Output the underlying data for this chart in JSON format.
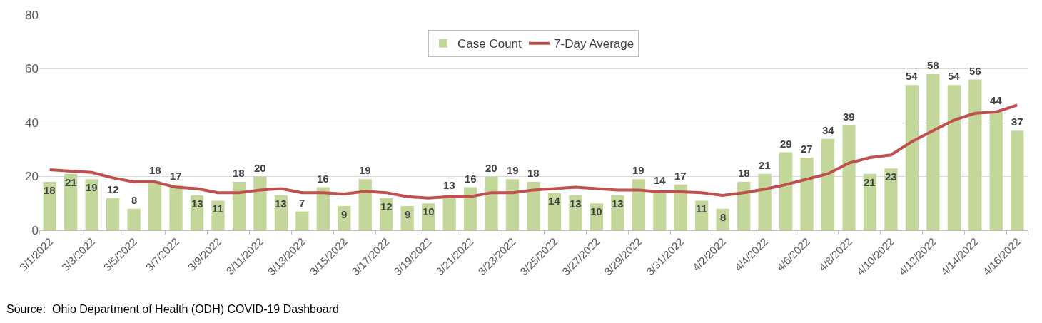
{
  "chart_data": {
    "type": "bar",
    "categories": [
      "3/1/2022",
      null,
      "3/3/2022",
      null,
      "3/5/2022",
      null,
      "3/7/2022",
      null,
      "3/9/2022",
      null,
      "3/11/2022",
      null,
      "3/13/2022",
      null,
      "3/15/2022",
      null,
      "3/17/2022",
      null,
      "3/19/2022",
      null,
      "3/21/2022",
      null,
      "3/23/2022",
      null,
      "3/25/2022",
      null,
      "3/27/2022",
      null,
      "3/29/2022",
      null,
      "3/31/2022",
      null,
      "4/2/2022",
      null,
      "4/4/2022",
      null,
      "4/6/2022",
      null,
      "4/8/2022",
      null,
      "4/10/2022",
      null,
      "4/12/2022",
      null,
      "4/14/2022",
      null,
      "4/16/2022"
    ],
    "series": [
      {
        "name": "Case Count",
        "color": "#c4d79b",
        "values": [
          18,
          21,
          19,
          12,
          8,
          18,
          17,
          13,
          11,
          18,
          20,
          13,
          7,
          16,
          9,
          19,
          12,
          9,
          10,
          13,
          16,
          20,
          19,
          18,
          14,
          13,
          10,
          13,
          19,
          14,
          17,
          11,
          8,
          18,
          21,
          29,
          27,
          34,
          39,
          21,
          23,
          54,
          58,
          54,
          56,
          44,
          37
        ],
        "value_labels": [
          "18",
          "21",
          "19",
          "12",
          "8",
          "18",
          "17",
          "13",
          "11",
          "18",
          "20",
          "13",
          "7",
          "16",
          "9",
          "19",
          "12",
          "9",
          "10",
          "13",
          "16",
          "20",
          "19",
          "18",
          "14",
          "13",
          "10",
          "13",
          "19",
          "14",
          "17",
          "11",
          "8",
          "18",
          "21",
          "29",
          "27",
          "34",
          "39",
          "21",
          "23",
          "54",
          "58",
          "54",
          "56",
          "44",
          "37"
        ]
      },
      {
        "name": "7-Day Average",
        "type": "line",
        "color": "#c0504d",
        "values": [
          22.5,
          22,
          21.5,
          19.5,
          18,
          18,
          16,
          15.5,
          14,
          14,
          15,
          15.5,
          14,
          14,
          13.5,
          14.5,
          14,
          12.5,
          12,
          12.5,
          12.5,
          14,
          14,
          15,
          15.5,
          16,
          15.5,
          15,
          15,
          14.3,
          14.3,
          14,
          13,
          14,
          15.3,
          17,
          19,
          21,
          25,
          27,
          28,
          33,
          37,
          41,
          43.5,
          44,
          46.5
        ]
      }
    ],
    "ylim": [
      0,
      80
    ],
    "yticks": [
      0,
      20,
      40,
      60,
      80
    ],
    "grid": "y",
    "legend": "top",
    "marker": "none",
    "line_style": "solid",
    "annotations": [
      "Source:  Ohio Department of Health (ODH) COVID-19 Dashboard"
    ]
  }
}
